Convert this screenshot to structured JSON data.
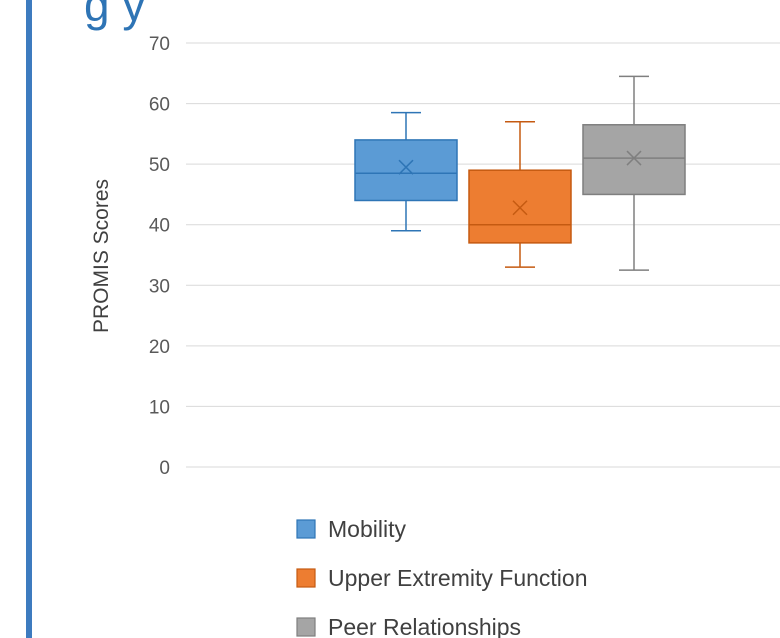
{
  "title_fragment": "g         y",
  "chart_data": {
    "type": "box",
    "ylabel": "PROMIS Scores",
    "ylim": [
      0,
      70
    ],
    "yticks": [
      0,
      10,
      20,
      30,
      40,
      50,
      60,
      70
    ],
    "grid": true,
    "legend_position": "bottom",
    "series": [
      {
        "name": "Mobility",
        "color": "#5b9bd5",
        "edge": "#2e75b6",
        "min": 39,
        "q1": 44,
        "median": 48.5,
        "q3": 54,
        "max": 58.5,
        "mean": 49.5
      },
      {
        "name": "Upper Extremity Function",
        "color": "#ed7d31",
        "edge": "#c55a11",
        "min": 33,
        "q1": 37,
        "median": 40,
        "q3": 49,
        "max": 57,
        "mean": 42.8
      },
      {
        "name": "Peer Relationships",
        "color": "#a5a5a5",
        "edge": "#7f7f7f",
        "min": 32.5,
        "q1": 45,
        "median": 51,
        "q3": 56.5,
        "max": 64.5,
        "mean": 51
      }
    ]
  }
}
